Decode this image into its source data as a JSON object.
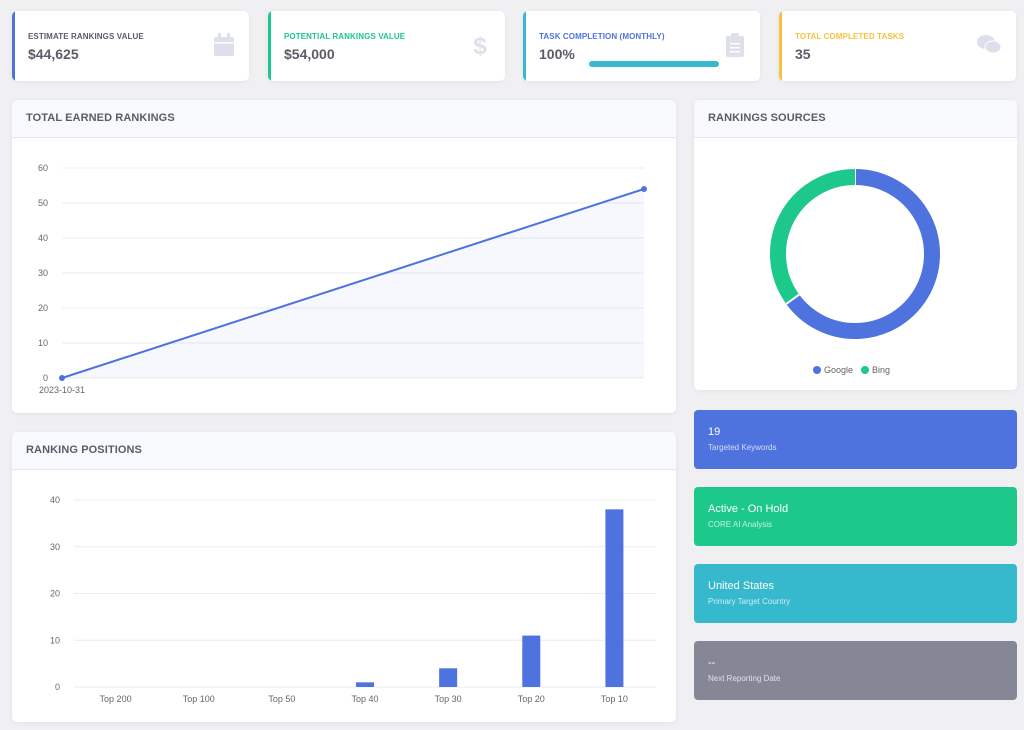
{
  "stats": [
    {
      "label": "Estimate Rankings Value",
      "value": "$44,625",
      "color": "#4e73df",
      "icon": "calendar-icon"
    },
    {
      "label": "Potential Rankings Value",
      "value": "$54,000",
      "color": "#1cc88a",
      "icon": "dollar-icon"
    },
    {
      "label": "Task Completion (Monthly)",
      "value": "100%",
      "color": "#36b9cc",
      "icon": "clipboard-icon",
      "progress": 1.0
    },
    {
      "label": "Total Completed Tasks",
      "value": "35",
      "color": "#f6c23e",
      "icon": "comments-icon"
    }
  ],
  "earned": {
    "title": "Total Earned Rankings",
    "chart_data": {
      "type": "area",
      "x": [
        "2023-10-31",
        ""
      ],
      "values": [
        0,
        54
      ],
      "ylim": [
        0,
        60
      ],
      "yticks": [
        "0",
        "10",
        "20",
        "30",
        "40",
        "50",
        "60"
      ],
      "xtick_label": "2023-10-31",
      "grid": true
    }
  },
  "sources": {
    "title": "Rankings Sources",
    "chart_data": {
      "type": "pie",
      "categories": [
        "Google",
        "Bing"
      ],
      "values": [
        65,
        35
      ],
      "colors": [
        "#4e73df",
        "#1cc88a"
      ],
      "legend": "bottom"
    }
  },
  "positions": {
    "title": "Ranking Positions",
    "chart_data": {
      "type": "bar",
      "categories": [
        "Top 200",
        "Top 100",
        "Top 50",
        "Top 40",
        "Top 30",
        "Top 20",
        "Top 10"
      ],
      "values": [
        0,
        0,
        0,
        1,
        4,
        11,
        38
      ],
      "ylim": [
        0,
        40
      ],
      "yticks": [
        "0",
        "10",
        "20",
        "30",
        "40"
      ],
      "color": "#4e73df",
      "grid": true
    }
  },
  "info_cards": [
    {
      "big": "19",
      "small": "Targeted Keywords",
      "color": "#4e73df"
    },
    {
      "big": "Active - On Hold",
      "small": "CORE AI Analysis",
      "color": "#1cc88a"
    },
    {
      "big": "United States",
      "small": "Primary Target Country",
      "color": "#36b9cc"
    },
    {
      "big": "--",
      "small": "Next Reporting Date",
      "color": "#858796"
    }
  ]
}
